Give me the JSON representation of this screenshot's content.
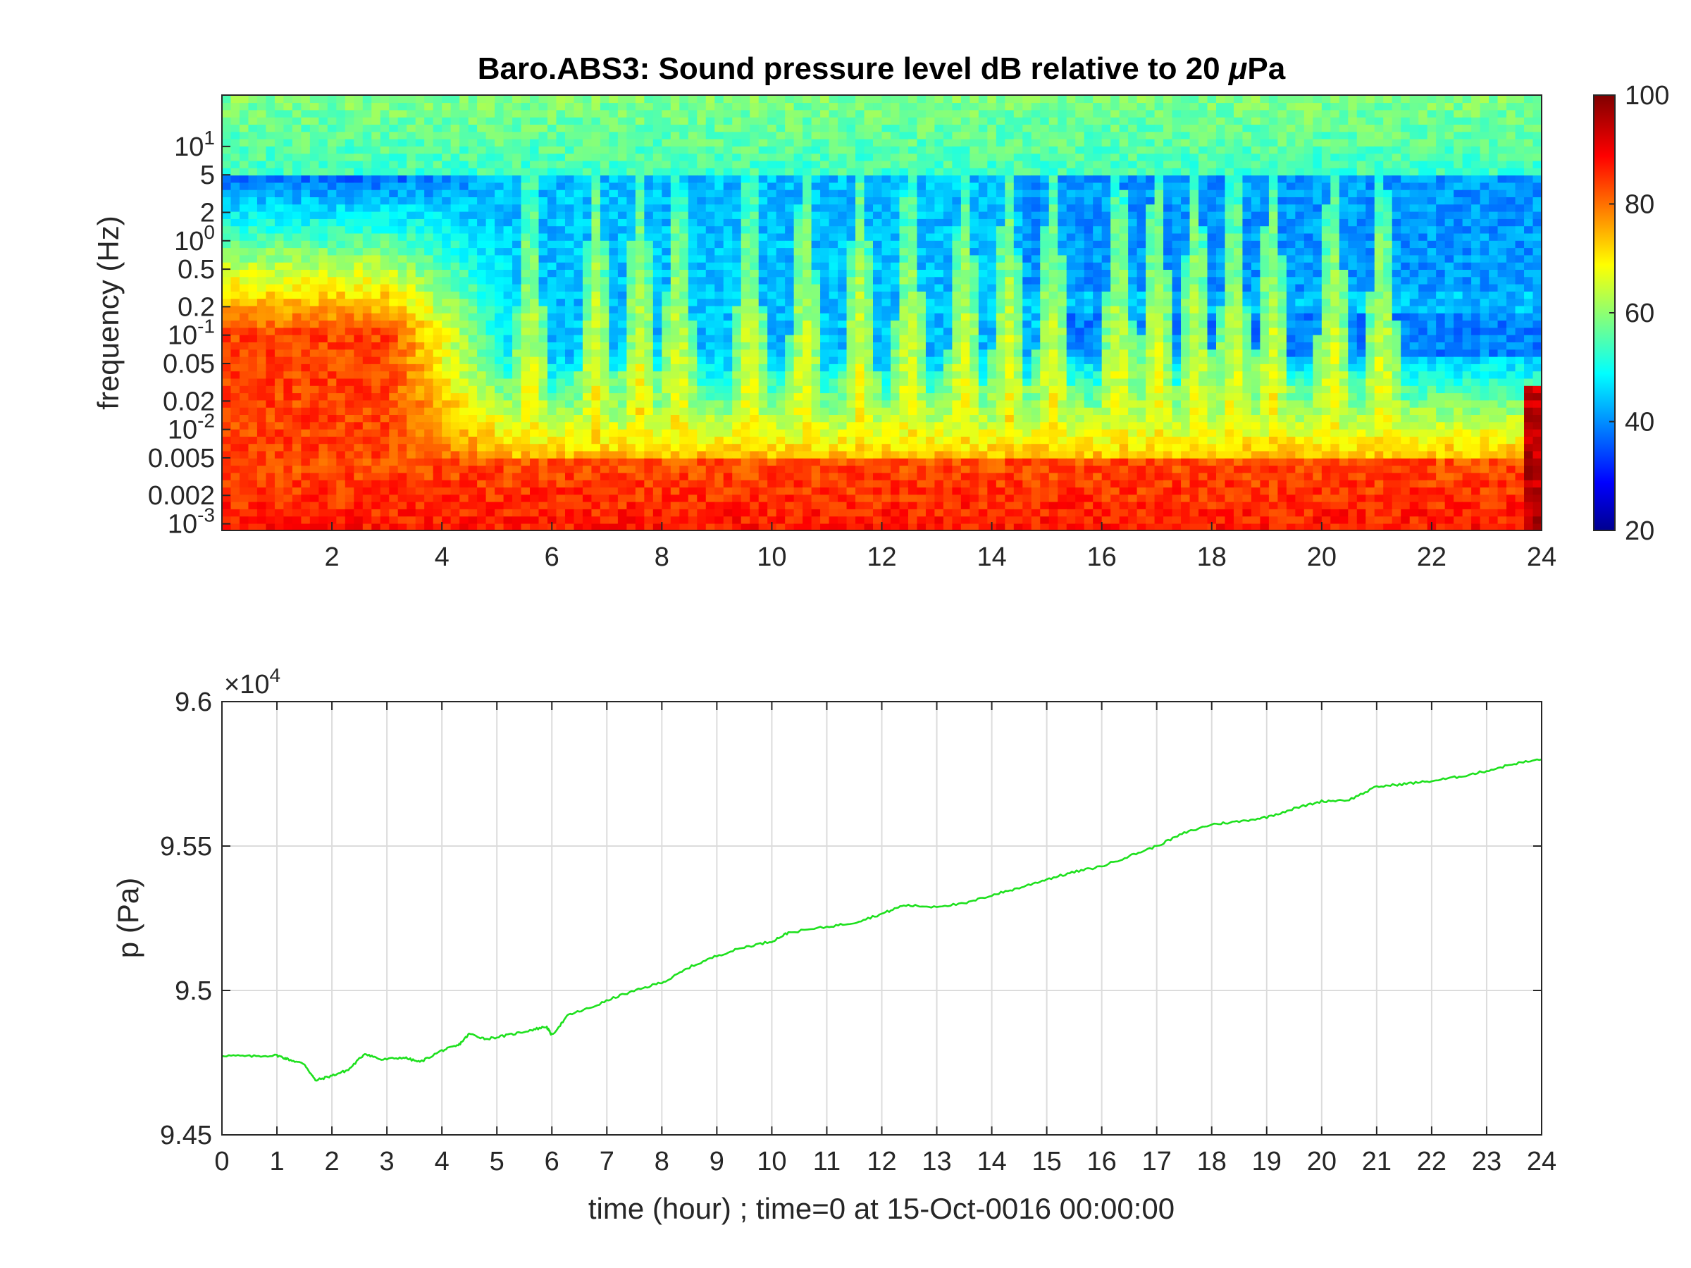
{
  "chart_data": [
    {
      "type": "heatmap",
      "title_prefix": "Baro.ABS3: Sound pressure level dB relative to 20 ",
      "title_mu": "μ",
      "title_suffix": "Pa",
      "xlabel": "",
      "ylabel": "frequency (Hz)",
      "xlim": [
        0,
        24
      ],
      "ylim": [
        0.00085,
        35
      ],
      "yscale": "log",
      "x_ticks": [
        "2",
        "4",
        "6",
        "8",
        "10",
        "12",
        "14",
        "16",
        "18",
        "20",
        "22",
        "24"
      ],
      "y_ticks": [
        {
          "value": 0.001,
          "base": "10",
          "exp": "-3"
        },
        {
          "value": 0.002,
          "label": "0.002"
        },
        {
          "value": 0.005,
          "label": "0.005"
        },
        {
          "value": 0.01,
          "base": "10",
          "exp": "-2"
        },
        {
          "value": 0.02,
          "label": "0.02"
        },
        {
          "value": 0.05,
          "label": "0.05"
        },
        {
          "value": 0.1,
          "base": "10",
          "exp": "-1"
        },
        {
          "value": 0.2,
          "label": "0.2"
        },
        {
          "value": 0.5,
          "label": "0.5"
        },
        {
          "value": 1,
          "base": "10",
          "exp": "0"
        },
        {
          "value": 2,
          "label": "2"
        },
        {
          "value": 5,
          "label": "5"
        },
        {
          "value": 10,
          "base": "10",
          "exp": "1"
        }
      ],
      "colormap": "jet",
      "clim": [
        20,
        100
      ],
      "colorbar_ticks": [
        "20",
        "40",
        "60",
        "80",
        "100"
      ],
      "colorbar_placement": "right",
      "events_hours": [
        5.6,
        6.8,
        7.6,
        8.3,
        9.6,
        10.6,
        11.6,
        12.5,
        13.5,
        14.3,
        15.1,
        16.3,
        17.0,
        17.7,
        18.4,
        19.1,
        20.2,
        21.1
      ],
      "levels_db_approx": {
        "low_freq_0.001_0.005Hz": 88,
        "mid_freq_0.01_0.1Hz_early_hours": 85,
        "mid_freq_0.01_0.1Hz_late_hours": 45,
        "band_0.5_2Hz_late_hours": 38,
        "high_freq_above_5Hz": 55
      }
    },
    {
      "type": "line",
      "xlabel": "time (hour) ; time=0 at 15-Oct-0016 00:00:00",
      "ylabel": "p (Pa)",
      "exponent_base": "×10",
      "exponent_power": "4",
      "xlim": [
        0,
        24
      ],
      "ylim": [
        9.45,
        9.6
      ],
      "grid": true,
      "x_ticks": [
        "0",
        "1",
        "2",
        "3",
        "4",
        "5",
        "6",
        "7",
        "8",
        "9",
        "10",
        "11",
        "12",
        "13",
        "14",
        "15",
        "16",
        "17",
        "18",
        "19",
        "20",
        "21",
        "22",
        "23",
        "24"
      ],
      "y_ticks": [
        {
          "value": 9.45,
          "label": "9.45"
        },
        {
          "value": 9.5,
          "label": "9.5"
        },
        {
          "value": 9.55,
          "label": "9.55"
        },
        {
          "value": 9.6,
          "label": "9.6"
        }
      ],
      "series": [
        {
          "color": "#1ee01e",
          "x": [
            0,
            0.5,
            1.0,
            1.2,
            1.5,
            1.7,
            2.0,
            2.3,
            2.6,
            2.9,
            3.3,
            3.6,
            4.0,
            4.3,
            4.5,
            4.8,
            5.2,
            5.6,
            5.9,
            6.0,
            6.3,
            6.7,
            7.2,
            7.7,
            8.1,
            8.5,
            9.0,
            9.5,
            10.0,
            10.3,
            11.0,
            11.5,
            12.0,
            12.4,
            12.9,
            13.5,
            14.0,
            14.5,
            15.0,
            15.5,
            16.0,
            16.5,
            17.0,
            17.5,
            18.0,
            18.5,
            19.0,
            19.5,
            20.0,
            20.5,
            21.0,
            21.5,
            22.0,
            22.5,
            23.0,
            23.5,
            24.0
          ],
          "y": [
            9.4775,
            9.4772,
            9.4775,
            9.4762,
            9.4745,
            9.4688,
            9.4705,
            9.4725,
            9.4782,
            9.476,
            9.4768,
            9.4752,
            9.4792,
            9.481,
            9.485,
            9.4832,
            9.4845,
            9.4862,
            9.4875,
            9.4845,
            9.4915,
            9.494,
            9.498,
            9.501,
            9.5035,
            9.508,
            9.512,
            9.515,
            9.517,
            9.52,
            9.522,
            9.5235,
            9.5265,
            9.5295,
            9.529,
            9.53,
            9.533,
            9.5355,
            9.5385,
            9.541,
            9.543,
            9.5465,
            9.55,
            9.5545,
            9.5575,
            9.5585,
            9.56,
            9.563,
            9.5655,
            9.566,
            9.5705,
            9.5715,
            9.5725,
            9.574,
            9.576,
            9.5785,
            9.58
          ]
        }
      ]
    }
  ]
}
